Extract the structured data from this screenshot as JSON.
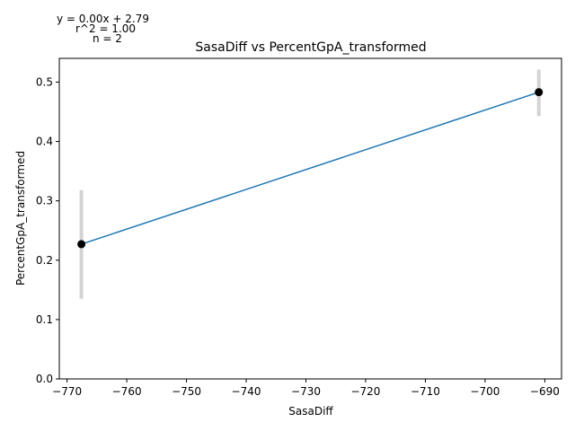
{
  "chart_data": {
    "type": "scatter",
    "title": "SasaDiff vs PercentGpA_transformed",
    "xlabel": "SasaDiff",
    "ylabel": "PercentGpA_transformed",
    "xlim": [
      -771.3,
      -687.2
    ],
    "ylim": [
      0,
      0.54
    ],
    "x_ticks": [
      -770,
      -760,
      -750,
      -740,
      -730,
      -720,
      -710,
      -700,
      -690
    ],
    "x_tick_labels": [
      "−770",
      "−760",
      "−750",
      "−740",
      "−730",
      "−720",
      "−710",
      "−700",
      "−690"
    ],
    "y_ticks": [
      0,
      0.1,
      0.2,
      0.3,
      0.4,
      0.5
    ],
    "y_tick_labels": [
      "0.0",
      "0.1",
      "0.2",
      "0.3",
      "0.4",
      "0.5"
    ],
    "points": [
      {
        "x": -767.6,
        "y": 0.227,
        "err_low": 0.135,
        "err_high": 0.318
      },
      {
        "x": -691.0,
        "y": 0.483,
        "err_low": 0.443,
        "err_high": 0.521
      }
    ],
    "fit_line": {
      "x": [
        -767.6,
        -691.0
      ],
      "y": [
        0.227,
        0.483
      ]
    },
    "annotations": {
      "equation": "y = 0.00x + 2.79",
      "r2": "r^2 = 1.00",
      "n": "n = 2"
    },
    "grid": false,
    "legend": "none",
    "colors": {
      "fit_line": "#1f77b4",
      "points": "#000000",
      "error_bars": "#d3d3d3"
    }
  }
}
